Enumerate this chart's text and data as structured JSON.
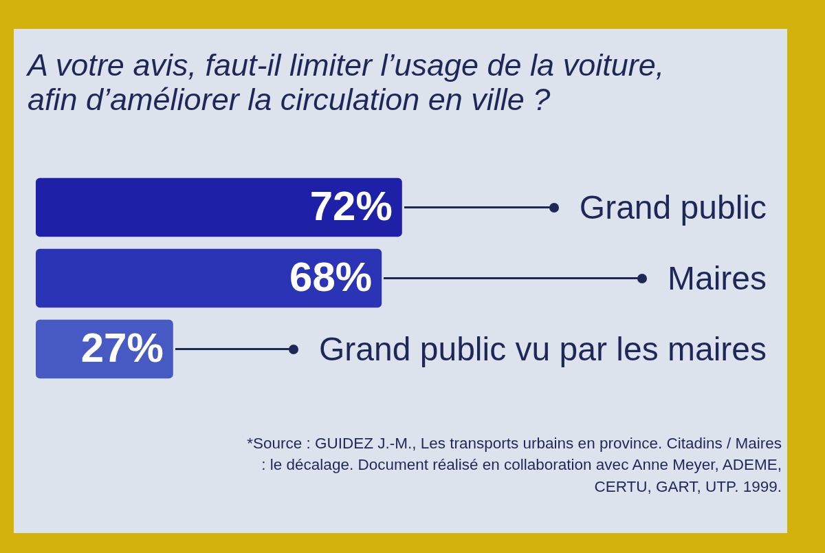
{
  "chart_data": {
    "type": "bar",
    "orientation": "horizontal",
    "title": "A votre avis, faut-il limiter l’usage de la voiture, afin d’améliorer la circulation en ville ?",
    "categories": [
      "Grand public",
      "Maires",
      "Grand public vu par les maires"
    ],
    "values": [
      72,
      68,
      27
    ],
    "colors": [
      "#1e20a8",
      "#2a34b4",
      "#4759c2"
    ],
    "value_labels": [
      "72%",
      "68%",
      "27%"
    ],
    "tick_labels": false,
    "annotations": [
      "*Source : GUIDEZ J.-M., Les transports urbains en province. Citadins / Maires : le décalage. Document réalisé en collaboration avec Anne Meyer, ADEME, CERTU, GART, UTP. 1999."
    ]
  }
}
